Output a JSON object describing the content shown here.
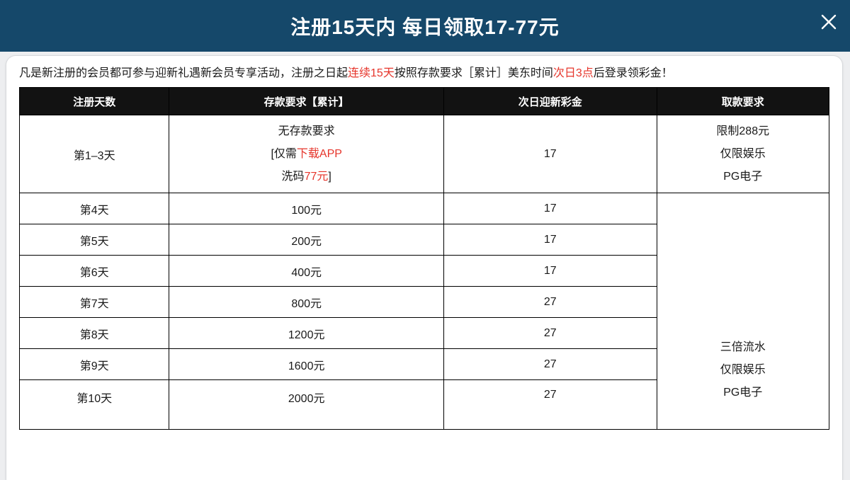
{
  "modal": {
    "title": "注册15天内 每日领取17-77元"
  },
  "intro": {
    "segments": [
      {
        "text": "凡是新注册的会员都可参与迎新礼遇新会员专享活动，注册之日起"
      },
      {
        "text": "连续15天",
        "red": true
      },
      {
        "text": "按照存款要求［累计］美东时间"
      },
      {
        "text": "次日3点",
        "red": true
      },
      {
        "text": "后登录领彩金！"
      }
    ]
  },
  "table": {
    "headers": [
      "注册天数",
      "存款要求【累计】",
      "次日迎新彩金",
      "取款要求"
    ],
    "first_row": {
      "day": "第1–3天",
      "deposit_lines": [
        [
          {
            "text": "无存款要求"
          }
        ],
        [
          {
            "text": "[仅需"
          },
          {
            "text": "下载APP",
            "red": true
          }
        ],
        [
          {
            "text": "洗码"
          },
          {
            "text": "77元",
            "red": true
          },
          {
            "text": "]"
          }
        ]
      ],
      "bonus": "17",
      "withdraw_lines": [
        "限制288元",
        "仅限娱乐",
        "PG电子"
      ]
    },
    "rows": [
      {
        "day": "第4天",
        "deposit": "100元",
        "bonus": "17"
      },
      {
        "day": "第5天",
        "deposit": "200元",
        "bonus": "17"
      },
      {
        "day": "第6天",
        "deposit": "400元",
        "bonus": "17"
      },
      {
        "day": "第7天",
        "deposit": "800元",
        "bonus": "27"
      },
      {
        "day": "第8天",
        "deposit": "1200元",
        "bonus": "27"
      },
      {
        "day": "第9天",
        "deposit": "1600元",
        "bonus": "27"
      },
      {
        "day": "第10天",
        "deposit": "2000元",
        "bonus": "27"
      }
    ],
    "merged_withdraw_lines": [
      "三倍流水",
      "仅限娱乐",
      "PG电子"
    ]
  },
  "colors": {
    "header_bg": "#15486a",
    "table_header_bg": "#121212",
    "accent_red": "#e6352b",
    "page_bg": "#edeef0",
    "border": "#000000"
  }
}
